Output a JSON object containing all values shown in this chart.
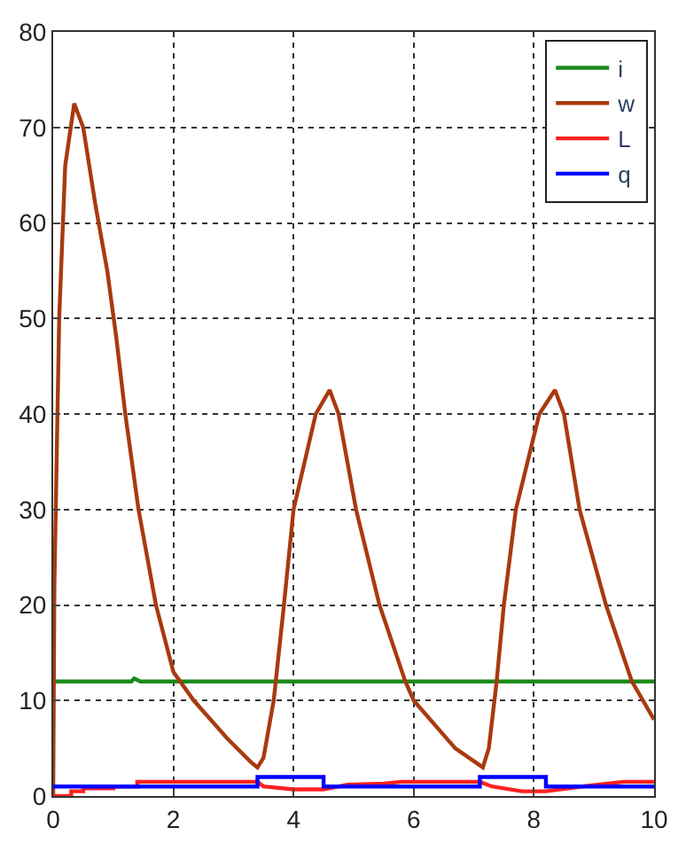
{
  "chart_data": {
    "type": "line",
    "xlim": [
      0,
      10
    ],
    "ylim": [
      0,
      80
    ],
    "xticks": [
      0,
      2,
      4,
      6,
      8,
      10
    ],
    "yticks": [
      0,
      10,
      20,
      30,
      40,
      50,
      60,
      70,
      80
    ],
    "grid": true,
    "legend": "top right",
    "line_style": "solid",
    "marker": "none",
    "series": [
      {
        "name": "i",
        "color": "#1a8a1a",
        "x": [
          0.02,
          1.3,
          1.35,
          1.45,
          10
        ],
        "values": [
          12,
          12,
          12.3,
          12,
          12
        ]
      },
      {
        "name": "w",
        "color": "#a83a10",
        "x": [
          0,
          0.02,
          0.1,
          0.2,
          0.35,
          0.5,
          0.7,
          0.9,
          1.05,
          1.2,
          1.42,
          1.71,
          2.0,
          2.34,
          2.9,
          3.3,
          3.4,
          3.5,
          3.67,
          3.84,
          4.0,
          4.37,
          4.6,
          4.75,
          5.04,
          5.43,
          5.86,
          6.0,
          6.69,
          7.15,
          7.25,
          7.38,
          7.5,
          7.7,
          8.09,
          8.35,
          8.5,
          8.76,
          9.2,
          9.63,
          10
        ],
        "values": [
          0,
          22,
          50,
          66,
          72.5,
          70,
          62,
          55,
          48,
          40,
          30,
          20,
          13,
          10,
          6,
          3.5,
          3,
          4,
          10,
          20,
          30,
          40,
          42.5,
          40,
          30,
          20,
          12,
          10,
          5,
          3,
          5,
          12,
          20,
          30,
          40,
          42.5,
          40,
          30,
          20,
          12,
          8
        ]
      },
      {
        "name": "L",
        "color": "#ff2020",
        "x": [
          0,
          0.3,
          0.3,
          0.5,
          0.5,
          1.0,
          1.0,
          1.4,
          1.4,
          3.4,
          3.5,
          4.0,
          4.5,
          4.9,
          5.5,
          5.8,
          7.1,
          7.3,
          7.8,
          8.2,
          8.8,
          9.5,
          10
        ],
        "values": [
          0,
          0,
          0.5,
          0.5,
          0.8,
          0.8,
          1.0,
          1.0,
          1.5,
          1.5,
          1.0,
          0.7,
          0.7,
          1.2,
          1.3,
          1.5,
          1.5,
          1.0,
          0.5,
          0.5,
          1.0,
          1.5,
          1.5
        ]
      },
      {
        "name": "q",
        "color": "#0000ff",
        "x": [
          0,
          3.4,
          3.4,
          4.5,
          4.5,
          7.1,
          7.1,
          8.2,
          8.2,
          10
        ],
        "values": [
          1,
          1,
          2,
          2,
          1,
          1,
          2,
          2,
          1,
          1
        ]
      }
    ]
  }
}
